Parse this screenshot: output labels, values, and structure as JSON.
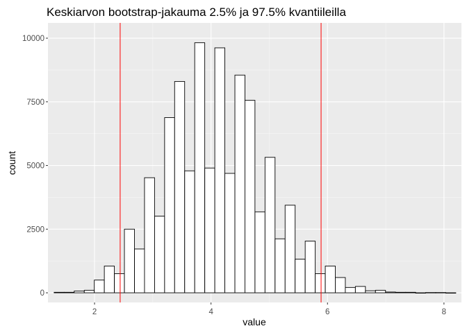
{
  "chart_data": {
    "type": "bar",
    "title": "Keskiarvon bootstrap-jakauma 2.5% ja 97.5% kvantiileilla",
    "xlabel": "value",
    "ylabel": "count",
    "xlim": [
      1.2,
      8.3
    ],
    "ylim": [
      -380,
      10600
    ],
    "x_ticks": [
      2,
      4,
      6,
      8
    ],
    "y_ticks": [
      0,
      2500,
      5000,
      7500,
      10000
    ],
    "y_tick_labels": [
      "0",
      "2500",
      "5000",
      "7500",
      "10000"
    ],
    "grid": true,
    "bin_width": 0.1724,
    "bin_starts": [
      1.306,
      1.479,
      1.651,
      1.824,
      1.996,
      2.168,
      2.341,
      2.513,
      2.686,
      2.858,
      3.031,
      3.203,
      3.375,
      3.548,
      3.72,
      3.893,
      4.065,
      4.237,
      4.41,
      4.582,
      4.755,
      4.927,
      5.1,
      5.272,
      5.444,
      5.617,
      5.789,
      5.962,
      6.134,
      6.306,
      6.479,
      6.651,
      6.824,
      6.996,
      7.169,
      7.341,
      7.513,
      7.686,
      7.858,
      8.031
    ],
    "counts": [
      20,
      20,
      70,
      100,
      500,
      1050,
      750,
      2500,
      1720,
      4520,
      3010,
      6880,
      8300,
      4790,
      9820,
      4900,
      9620,
      4690,
      8550,
      7560,
      3180,
      5320,
      2120,
      3440,
      1320,
      2030,
      750,
      1050,
      600,
      210,
      250,
      80,
      100,
      30,
      20,
      20,
      0,
      10,
      10,
      0
    ],
    "vlines": [
      2.44,
      5.89
    ],
    "vline_color": "#ff0000",
    "panel_background": "#ebebeb",
    "bar_fill": "#ffffff",
    "bar_stroke": "#000000"
  }
}
